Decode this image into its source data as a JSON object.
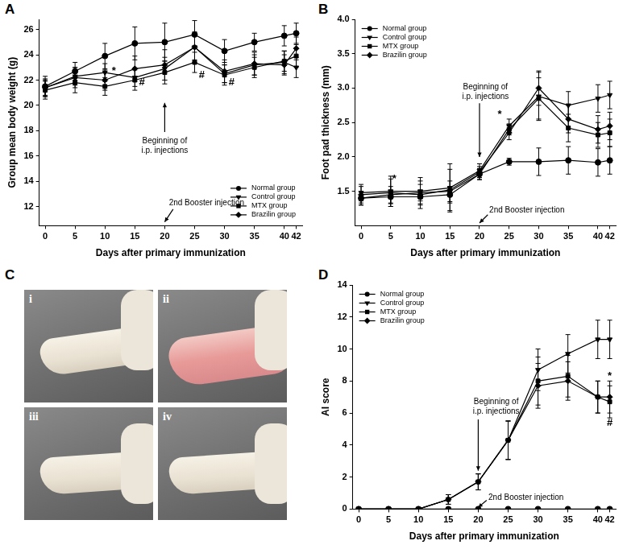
{
  "panel_labels": [
    "A",
    "B",
    "C",
    "D"
  ],
  "photo_labels": [
    "i",
    "ii",
    "iii",
    "iv"
  ],
  "chart_data": [
    {
      "type": "line",
      "x_label": "Days after primary immunization",
      "y_label": "Group mean body weight (g)",
      "x": [
        0,
        5,
        10,
        15,
        20,
        25,
        30,
        35,
        40,
        42
      ],
      "xlim": [
        -1,
        43
      ],
      "xticks": [
        0,
        5,
        10,
        15,
        20,
        25,
        30,
        35,
        40,
        42
      ],
      "ylim": [
        10.5,
        26.8
      ],
      "yticks": [
        12,
        14,
        16,
        18,
        20,
        22,
        24,
        26
      ],
      "grid": false,
      "legend": "lower right",
      "series": [
        {
          "name": "Normal group",
          "color": "#000000",
          "marker": "circle",
          "values": [
            21.5,
            22.7,
            23.9,
            24.9,
            25.0,
            25.6,
            24.3,
            25.0,
            25.5,
            25.7
          ],
          "errors": [
            0.8,
            0.7,
            1.0,
            1.3,
            1.5,
            1.1,
            0.9,
            0.7,
            0.8,
            0.8
          ]
        },
        {
          "name": "Control group",
          "color": "#000000",
          "marker": "triangle_down",
          "values": [
            21.4,
            22.3,
            22.6,
            22.2,
            22.9,
            24.6,
            22.5,
            23.2,
            23.4,
            23.0
          ],
          "errors": [
            0.6,
            0.7,
            0.7,
            0.7,
            0.9,
            1.0,
            0.7,
            0.8,
            0.9,
            0.8
          ]
        },
        {
          "name": "MTX group",
          "color": "#000000",
          "marker": "square",
          "values": [
            21.2,
            21.8,
            21.5,
            22.0,
            22.6,
            23.4,
            22.4,
            23.0,
            23.5,
            23.9
          ],
          "errors": [
            0.7,
            0.8,
            0.7,
            0.8,
            0.9,
            0.8,
            0.8,
            0.8,
            0.8,
            0.9
          ]
        },
        {
          "name": "Brazilin group",
          "color": "#000000",
          "marker": "diamond",
          "values": [
            21.4,
            22.2,
            22.0,
            22.9,
            23.2,
            24.6,
            22.7,
            23.3,
            23.2,
            24.5
          ],
          "errors": [
            0.7,
            0.8,
            0.8,
            1.0,
            1.2,
            1.2,
            0.9,
            0.9,
            0.8,
            0.9
          ]
        }
      ],
      "annotations": [
        {
          "text": [
            "*"
          ],
          "x": 11.5,
          "y": 22.7
        },
        {
          "text": [
            "#"
          ],
          "x": 16.2,
          "y": 21.8
        },
        {
          "text": [
            "#"
          ],
          "x": 26.2,
          "y": 22.4
        },
        {
          "text": [
            "#"
          ],
          "x": 31.2,
          "y": 21.8
        },
        {
          "text": [
            "Beginning of",
            "i.p. injections"
          ],
          "x": 20,
          "y": 17.2,
          "arrow_from": [
            20,
            17.9
          ],
          "arrow_to": [
            20,
            20.2
          ]
        },
        {
          "text": [
            "2nd Booster injection"
          ],
          "x": 27,
          "y": 12.3,
          "arrow_from": [
            21.4,
            11.8
          ],
          "arrow_to": [
            20,
            10.8
          ]
        }
      ]
    },
    {
      "type": "line",
      "x_label": "Days after primary immunization",
      "y_label": "Foot pad thickness (mm)",
      "x": [
        0,
        5,
        10,
        15,
        20,
        25,
        30,
        35,
        40,
        42
      ],
      "xlim": [
        -1,
        43
      ],
      "xticks": [
        0,
        5,
        10,
        15,
        20,
        25,
        30,
        35,
        40,
        42
      ],
      "ylim": [
        1.0,
        4.0
      ],
      "yticks": [
        {
          "value": 1.5,
          "label": "1.5"
        },
        {
          "value": 2.0,
          "label": "2.0"
        },
        {
          "value": 2.5,
          "label": "2.5"
        },
        {
          "value": 3.0,
          "label": "3.0"
        },
        {
          "value": 3.5,
          "label": "3.5"
        },
        {
          "value": 4.0,
          "label": "4.0"
        }
      ],
      "grid": false,
      "legend": "upper left",
      "series": [
        {
          "name": "Normal group",
          "color": "#000000",
          "marker": "circle",
          "values": [
            1.4,
            1.42,
            1.42,
            1.45,
            1.75,
            1.93,
            1.93,
            1.95,
            1.92,
            1.95
          ],
          "errors": [
            0.1,
            0.1,
            0.1,
            0.12,
            0.08,
            0.05,
            0.2,
            0.2,
            0.2,
            0.2
          ]
        },
        {
          "name": "Control group",
          "color": "#000000",
          "marker": "triangle_down",
          "values": [
            1.48,
            1.5,
            1.5,
            1.55,
            1.8,
            2.45,
            2.88,
            2.75,
            2.85,
            2.9
          ],
          "errors": [
            0.12,
            0.22,
            0.2,
            0.35,
            0.1,
            0.1,
            0.35,
            0.2,
            0.2,
            0.2
          ]
        },
        {
          "name": "MTX group",
          "color": "#000000",
          "marker": "square",
          "values": [
            1.4,
            1.45,
            1.48,
            1.5,
            1.75,
            2.4,
            2.85,
            2.42,
            2.32,
            2.35
          ],
          "errors": [
            0.1,
            0.12,
            0.12,
            0.15,
            0.08,
            0.08,
            0.3,
            0.2,
            0.18,
            0.2
          ]
        },
        {
          "name": "Brazilin group",
          "color": "#000000",
          "marker": "diamond",
          "values": [
            1.45,
            1.48,
            1.45,
            1.52,
            1.78,
            2.35,
            3.0,
            2.55,
            2.4,
            2.45
          ],
          "errors": [
            0.12,
            0.2,
            0.2,
            0.3,
            0.08,
            0.1,
            0.25,
            0.2,
            0.2,
            0.2
          ]
        }
      ],
      "annotations": [
        {
          "text": [
            "*"
          ],
          "x": 5.6,
          "y": 1.68
        },
        {
          "text": [
            "*"
          ],
          "x": 23.4,
          "y": 2.62
        },
        {
          "text": [
            "Beginning of",
            "i.p. injections"
          ],
          "x": 21,
          "y": 3.02,
          "arrow_from": [
            20,
            2.78
          ],
          "arrow_to": [
            20,
            2.0
          ]
        },
        {
          "text": [
            "2nd Booster injection"
          ],
          "x": 28,
          "y": 1.22,
          "arrow_from": [
            21.4,
            1.16
          ],
          "arrow_to": [
            20,
            1.04
          ]
        }
      ]
    },
    {
      "type": "line",
      "x_label": "Days after primary immunization",
      "y_label": "AI score",
      "x": [
        0,
        5,
        10,
        15,
        20,
        25,
        30,
        35,
        40,
        42
      ],
      "xlim": [
        -1,
        43
      ],
      "xticks": [
        0,
        5,
        10,
        15,
        20,
        25,
        30,
        35,
        40,
        42
      ],
      "ylim": [
        0,
        14
      ],
      "yticks": [
        0,
        2,
        4,
        6,
        8,
        10,
        12,
        14
      ],
      "grid": false,
      "legend": "upper left",
      "series": [
        {
          "name": "Normal group",
          "color": "#000000",
          "marker": "circle",
          "values": [
            0,
            0,
            0,
            0,
            0,
            0,
            0,
            0,
            0,
            0
          ],
          "errors": [
            0,
            0,
            0,
            0,
            0,
            0,
            0,
            0,
            0,
            0
          ]
        },
        {
          "name": "Control group",
          "color": "#000000",
          "marker": "triangle_down",
          "values": [
            0,
            0,
            0,
            0.6,
            1.7,
            4.3,
            8.7,
            9.7,
            10.6,
            10.6
          ],
          "errors": [
            0,
            0,
            0,
            0.3,
            0.5,
            1.2,
            1.3,
            1.2,
            1.2,
            1.2
          ]
        },
        {
          "name": "MTX group",
          "color": "#000000",
          "marker": "square",
          "values": [
            0,
            0,
            0,
            0.6,
            1.7,
            4.3,
            8.0,
            8.3,
            7.0,
            6.7
          ],
          "errors": [
            0,
            0,
            0,
            0.3,
            0.5,
            1.2,
            1.5,
            1.3,
            1.0,
            1.0
          ]
        },
        {
          "name": "Brazilin group",
          "color": "#000000",
          "marker": "diamond",
          "values": [
            0,
            0,
            0,
            0.6,
            1.7,
            4.3,
            7.7,
            8.0,
            7.0,
            7.0
          ],
          "errors": [
            0,
            0,
            0,
            0.3,
            0.5,
            1.2,
            1.4,
            1.2,
            1.0,
            1.0
          ]
        }
      ],
      "annotations": [
        {
          "text": [
            "*"
          ],
          "x": 42,
          "y": 8.3
        },
        {
          "text": [
            "#"
          ],
          "x": 42,
          "y": 5.4
        },
        {
          "text": [
            "Beginning of",
            "i.p. injections"
          ],
          "x": 23,
          "y": 6.7,
          "arrow_from": [
            20,
            5.6
          ],
          "arrow_to": [
            20,
            2.4
          ]
        },
        {
          "text": [
            "2nd Booster injection"
          ],
          "x": 28,
          "y": 0.7,
          "arrow_from": [
            21.4,
            0.55
          ],
          "arrow_to": [
            20,
            0.1
          ]
        }
      ]
    }
  ]
}
